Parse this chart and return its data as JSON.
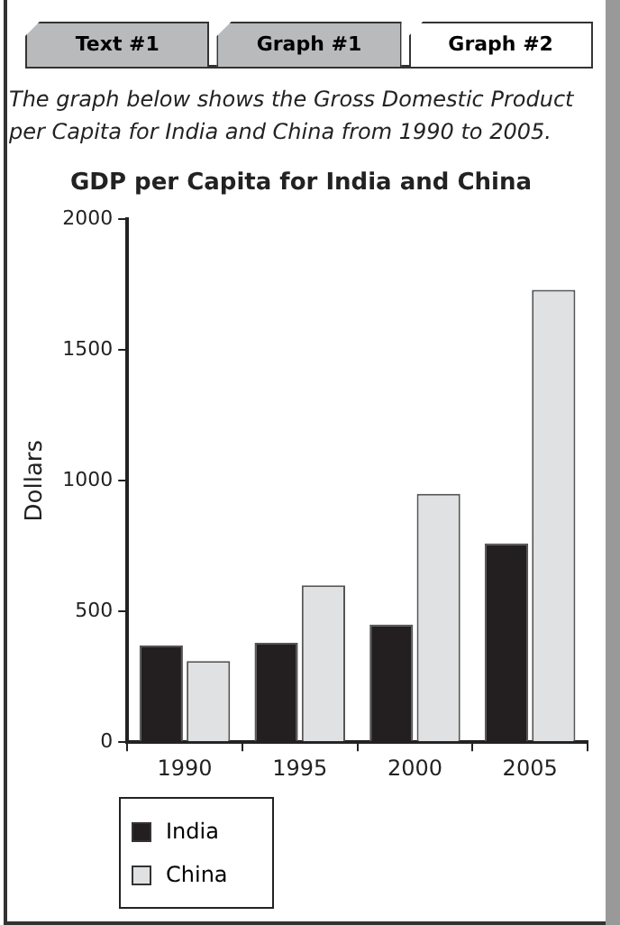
{
  "chart_data": {
    "type": "bar",
    "title": "GDP per Capita for India and China",
    "subtitle": "The graph below shows the Gross Domestic Product per Capita for India and China from 1990 to 2005.",
    "annotations": [
      "Text #1",
      "Graph #1",
      "Graph #2"
    ],
    "ylabel": "Dollars",
    "categories": [
      "1990",
      "1995",
      "2000",
      "2005"
    ],
    "series": [
      {
        "name": "India",
        "color": "#231f20",
        "values": [
          370,
          380,
          450,
          760
        ]
      },
      {
        "name": "China",
        "color": "#e0e1e2",
        "values": [
          310,
          600,
          950,
          1730
        ]
      }
    ],
    "ylim": [
      0,
      2000
    ],
    "yticks": [
      0,
      500,
      1000,
      1500,
      2000
    ],
    "grid": false,
    "legend": "bottom left"
  }
}
